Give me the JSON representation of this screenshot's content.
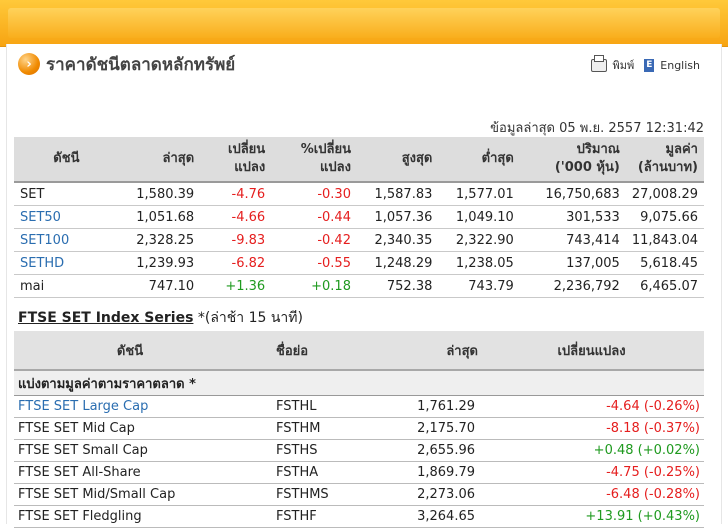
{
  "title": "ราคาดัชนีตลาดหลักทรัพย์",
  "title_icon": "›",
  "tools": {
    "print_label": "พิมพ์",
    "english_label": "English",
    "english_icon_text": "E"
  },
  "updated": "ข้อมูลล่าสุด 05 พ.ย. 2557 12:31:42",
  "index_table": {
    "headers": [
      "ดัชนี",
      "ล่าสุด",
      "เปลี่ยน\nแปลง",
      "%เปลี่ยน\nแปลง",
      "สูงสุด",
      "ต่ำสุด",
      "ปริมาณ\n('000 หุ้น)",
      "มูลค่า\n(ล้านบาท)"
    ],
    "rows": [
      {
        "name": "SET",
        "last": "1,580.39",
        "chg": "-4.76",
        "pchg": "-0.30",
        "high": "1,587.83",
        "low": "1,577.01",
        "vol": "16,750,683",
        "val": "27,008.29",
        "dir": "neg",
        "link": false
      },
      {
        "name": "SET50",
        "last": "1,051.68",
        "chg": "-4.66",
        "pchg": "-0.44",
        "high": "1,057.36",
        "low": "1,049.10",
        "vol": "301,533",
        "val": "9,075.66",
        "dir": "neg",
        "link": true
      },
      {
        "name": "SET100",
        "last": "2,328.25",
        "chg": "-9.83",
        "pchg": "-0.42",
        "high": "2,340.35",
        "low": "2,322.90",
        "vol": "743,414",
        "val": "11,843.04",
        "dir": "neg",
        "link": true
      },
      {
        "name": "SETHD",
        "last": "1,239.93",
        "chg": "-6.82",
        "pchg": "-0.55",
        "high": "1,248.29",
        "low": "1,238.05",
        "vol": "137,005",
        "val": "5,618.45",
        "dir": "neg",
        "link": true
      },
      {
        "name": "mai",
        "last": "747.10",
        "chg": "+1.36",
        "pchg": "+0.18",
        "high": "752.38",
        "low": "743.79",
        "vol": "2,236,792",
        "val": "6,465.07",
        "dir": "pos",
        "link": false
      }
    ]
  },
  "ftse": {
    "title": "FTSE SET Index Series",
    "note": "*(ล่าช้า 15 นาที)",
    "headers": [
      "ดัชนี",
      "ชื่อย่อ",
      "ล่าสุด",
      "เปลี่ยนแปลง"
    ],
    "group_label": "แบ่งตามมูลค่าตามราคาตลาด *",
    "rows": [
      {
        "name": "FTSE SET Large Cap",
        "code": "FSTHL",
        "last": "1,761.29",
        "chg": "-4.64",
        "pchg": "(-0.26%)",
        "dir": "neg",
        "link": true
      },
      {
        "name": "FTSE SET Mid Cap",
        "code": "FSTHM",
        "last": "2,175.70",
        "chg": "-8.18",
        "pchg": "(-0.37%)",
        "dir": "neg",
        "link": false
      },
      {
        "name": "FTSE SET Small Cap",
        "code": "FSTHS",
        "last": "2,655.96",
        "chg": "+0.48",
        "pchg": "(+0.02%)",
        "dir": "pos",
        "link": false
      },
      {
        "name": "FTSE SET All-Share",
        "code": "FSTHA",
        "last": "1,869.79",
        "chg": "-4.75",
        "pchg": "(-0.25%)",
        "dir": "neg",
        "link": false
      },
      {
        "name": "FTSE SET Mid/Small Cap",
        "code": "FSTHMS",
        "last": "2,273.06",
        "chg": "-6.48",
        "pchg": "(-0.28%)",
        "dir": "neg",
        "link": false
      },
      {
        "name": "FTSE SET Fledgling",
        "code": "FSTHF",
        "last": "3,264.65",
        "chg": "+13.91",
        "pchg": "(+0.43%)",
        "dir": "pos",
        "link": false
      }
    ]
  },
  "colors": {
    "accent": "#f7a412",
    "negative": "#e51e1e",
    "positive": "#1f9a1f",
    "link": "#2a6db0"
  }
}
